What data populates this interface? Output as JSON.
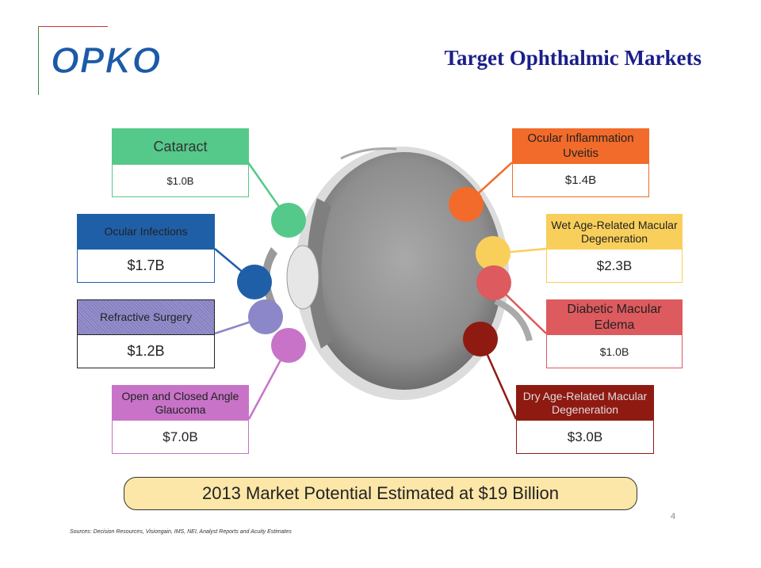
{
  "logo": {
    "text": "OPKO",
    "color": "#1b5aa8"
  },
  "title": "Target Ophthalmic Markets",
  "markets": [
    {
      "id": "cataract",
      "label": "Cataract",
      "value": "$1.0B",
      "color": "#55c98a"
    },
    {
      "id": "ocular-inflammation",
      "label": "Ocular Inflammation Uveitis",
      "value": "$1.4B",
      "color": "#f26b2a"
    },
    {
      "id": "ocular-infections",
      "label": "Ocular Infections",
      "value": "$1.7B",
      "color": "#1f5fa8"
    },
    {
      "id": "wet-amd",
      "label": "Wet Age-Related Macular Degeneration",
      "value": "$2.3B",
      "color": "#f9cf5b"
    },
    {
      "id": "refractive-surgery",
      "label": "Refractive Surgery",
      "value": "$1.2B",
      "color": "#8b87c8"
    },
    {
      "id": "diabetic-macular-edema",
      "label": "Diabetic Macular Edema",
      "value": "$1.0B",
      "color": "#dd5a5e"
    },
    {
      "id": "glaucoma",
      "label": "Open and Closed Angle Glaucoma",
      "value": "$7.0B",
      "color": "#c873c8"
    },
    {
      "id": "dry-amd",
      "label": "Dry Age-Related Macular Degeneration",
      "value": "$3.0B",
      "color": "#8f1a12"
    }
  ],
  "banner": "2013 Market Potential Estimated at $19 Billion",
  "page_number": "4",
  "sources": "Sources: Decision Resources, Visiongain, IMS, NEI, Analyst Reports and Acuity Estimates"
}
